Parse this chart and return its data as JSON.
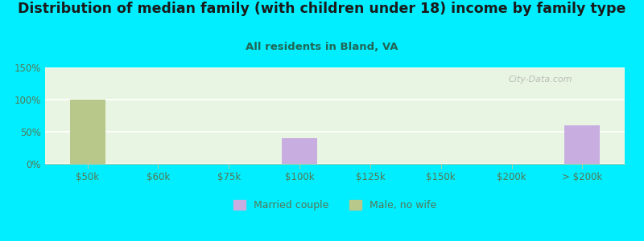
{
  "title": "Distribution of median family (with children under 18) income by family type",
  "subtitle": "All residents in Bland, VA",
  "categories": [
    "$50k",
    "$60k",
    "$75k",
    "$100k",
    "$125k",
    "$150k",
    "$200k",
    "> $200k"
  ],
  "married_couple": [
    0,
    0,
    0,
    40,
    0,
    0,
    0,
    60
  ],
  "male_no_wife": [
    100,
    0,
    0,
    0,
    0,
    0,
    0,
    0
  ],
  "married_couple_color": "#c8aee0",
  "male_no_wife_color": "#b8c88a",
  "background_color": "#00eeff",
  "plot_bg_top": "#e8f5e0",
  "plot_bg_bottom": "#f8fff8",
  "ylim": [
    0,
    150
  ],
  "yticks": [
    0,
    50,
    100,
    150
  ],
  "ytick_labels": [
    "0%",
    "50%",
    "100%",
    "150%"
  ],
  "bar_width": 0.5,
  "title_fontsize": 12.5,
  "subtitle_fontsize": 9.5,
  "tick_label_color": "#557755",
  "watermark": "City-Data.com",
  "legend_married": "Married couple",
  "legend_male": "Male, no wife"
}
